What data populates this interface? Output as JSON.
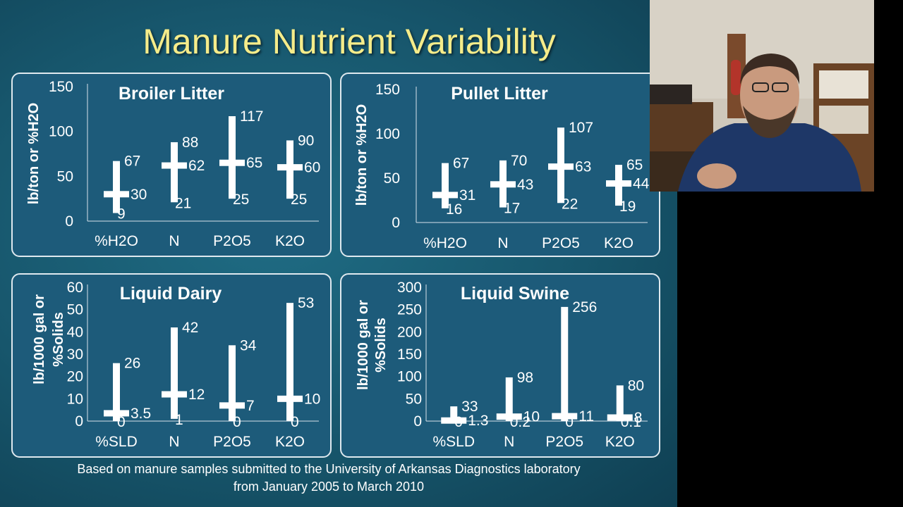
{
  "slide": {
    "title": "Manure Nutrient Variability",
    "footnote_line1": "Based on manure samples submitted to the University of Arkansas Diagnostics laboratory",
    "footnote_line2": "from January 2005 to March 2010",
    "colors": {
      "title": "#f5ec8a",
      "panel": "#1d5b7a",
      "bars": "#ffffff"
    }
  },
  "chart_data": [
    {
      "type": "range",
      "title": "Broiler Litter",
      "ylabel": "lb/ton or %H2O",
      "ylim": [
        0,
        150
      ],
      "yticks": [
        "0",
        "50",
        "100",
        "150"
      ],
      "categories": [
        "%H2O",
        "N",
        "P2O5",
        "K2O"
      ],
      "max": [
        67,
        88,
        117,
        90
      ],
      "mean": [
        30,
        62,
        65,
        60
      ],
      "min": [
        9,
        21,
        25,
        25
      ],
      "max_labels": [
        "67",
        "88",
        "117",
        "90"
      ],
      "mean_labels": [
        "30",
        "62",
        "65",
        "60"
      ],
      "min_labels": [
        "9",
        "21",
        "25",
        "25"
      ]
    },
    {
      "type": "range",
      "title": "Pullet Litter",
      "ylabel": "lb/ton or %H2O",
      "ylim": [
        0,
        150
      ],
      "yticks": [
        "0",
        "50",
        "100",
        "150"
      ],
      "categories": [
        "%H2O",
        "N",
        "P2O5",
        "K2O"
      ],
      "max": [
        67,
        70,
        107,
        65
      ],
      "mean": [
        31,
        43,
        63,
        44
      ],
      "min": [
        16,
        17,
        22,
        19
      ],
      "max_labels": [
        "67",
        "70",
        "107",
        "65"
      ],
      "mean_labels": [
        "31",
        "43",
        "63",
        "44"
      ],
      "min_labels": [
        "16",
        "17",
        "22",
        "19"
      ]
    },
    {
      "type": "range",
      "title": "Liquid Dairy",
      "ylabel": "lb/1000 gal or %Solids",
      "ylim": [
        0,
        60
      ],
      "yticks": [
        "0",
        "10",
        "20",
        "30",
        "40",
        "50",
        "60"
      ],
      "categories": [
        "%SLD",
        "N",
        "P2O5",
        "K2O"
      ],
      "max": [
        26,
        42,
        34,
        53
      ],
      "mean": [
        3.5,
        12,
        7,
        10
      ],
      "min": [
        0,
        1,
        0,
        0
      ],
      "max_labels": [
        "26",
        "42",
        "34",
        "53"
      ],
      "mean_labels": [
        "3.5",
        "12",
        "7",
        "10"
      ],
      "min_labels": [
        "0",
        "1",
        "0",
        "0"
      ]
    },
    {
      "type": "range",
      "title": "Liquid Swine",
      "ylabel": "lb/1000 gal or %Solids",
      "ylim": [
        0,
        300
      ],
      "yticks": [
        "0",
        "50",
        "100",
        "150",
        "200",
        "250",
        "300"
      ],
      "categories": [
        "%SLD",
        "N",
        "P2O5",
        "K2O"
      ],
      "max": [
        33,
        98,
        256,
        80
      ],
      "mean": [
        1.3,
        10,
        11,
        8
      ],
      "min": [
        0,
        0.2,
        0,
        0.1
      ],
      "max_labels": [
        "33",
        "98",
        "256",
        "80"
      ],
      "mean_labels": [
        "1.3",
        "10",
        "11",
        "8"
      ],
      "min_labels": [
        "0",
        "0.2",
        "0",
        "0.1"
      ]
    }
  ]
}
